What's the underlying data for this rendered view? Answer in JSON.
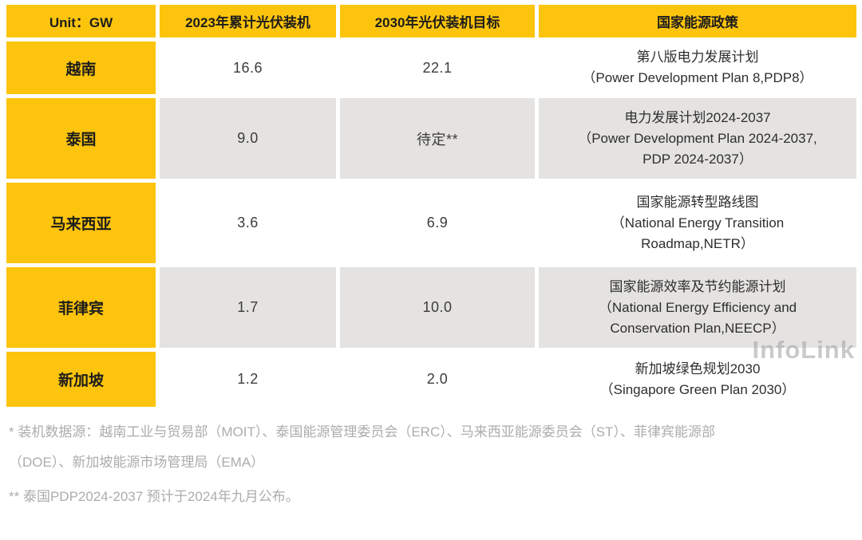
{
  "colors": {
    "accent_yellow": "#FCC40D",
    "cell_gray": "#E4E3E2",
    "cell_white": "#FFFFFF",
    "footnote_gray": "#ACACAB",
    "watermark_gray": "#9E9E9E"
  },
  "table": {
    "headers": [
      "Unit：GW",
      "2023年累计光伏装机",
      "2030年光伏装机目标",
      "国家能源政策"
    ],
    "rows": [
      {
        "country": "越南",
        "installed_2023": "16.6",
        "target_2030": "22.1",
        "policy_lines": [
          "第八版电力发展计划",
          "（Power Development Plan 8,PDP8）"
        ]
      },
      {
        "country": "泰国",
        "installed_2023": "9.0",
        "target_2030": "待定**",
        "policy_lines": [
          "电力发展计划2024-2037",
          "（Power Development Plan 2024-2037,",
          "PDP 2024-2037）"
        ]
      },
      {
        "country": "马来西亚",
        "installed_2023": "3.6",
        "target_2030": "6.9",
        "policy_lines": [
          "国家能源转型路线图",
          "（National Energy Transition",
          "Roadmap,NETR）"
        ]
      },
      {
        "country": "菲律宾",
        "installed_2023": "1.7",
        "target_2030": "10.0",
        "policy_lines": [
          "国家能源效率及节约能源计划",
          "（National Energy Efficiency and",
          "Conservation Plan,NEECP）"
        ]
      },
      {
        "country": "新加坡",
        "installed_2023": "1.2",
        "target_2030": "2.0",
        "policy_lines": [
          "新加坡绿色规划2030",
          "（Singapore Green Plan 2030）"
        ]
      }
    ]
  },
  "footnotes": [
    {
      "lines": [
        "* 装机数据源：越南工业与贸易部（MOIT）、泰国能源管理委员会（ERC）、马来西亚能源委员会（ST）、菲律宾能源部",
        "（DOE）、新加坡能源市场管理局（EMA）"
      ]
    },
    {
      "lines": [
        "** 泰国PDP2024-2037 预计于2024年九月公布。"
      ]
    }
  ],
  "watermark": "InfoLink",
  "chart_data": {
    "type": "table",
    "title": "东南亚各国光伏装机与国家能源政策",
    "unit": "GW",
    "columns": [
      "Unit：GW",
      "2023年累计光伏装机",
      "2030年光伏装机目标",
      "国家能源政策"
    ],
    "rows": [
      [
        "越南",
        16.6,
        22.1,
        "第八版电力发展计划（Power Development Plan 8,PDP8）"
      ],
      [
        "泰国",
        9.0,
        "待定**",
        "电力发展计划2024-2037（Power Development Plan 2024-2037,PDP 2024-2037）"
      ],
      [
        "马来西亚",
        3.6,
        6.9,
        "国家能源转型路线图（National Energy Transition Roadmap,NETR）"
      ],
      [
        "菲律宾",
        1.7,
        10.0,
        "国家能源效率及节约能源计划（National Energy Efficiency and Conservation Plan,NEECP）"
      ],
      [
        "新加坡",
        1.2,
        2.0,
        "新加坡绿色规划2030（Singapore Green Plan 2030）"
      ]
    ],
    "footnotes": [
      "* 装机数据源：越南工业与贸易部（MOIT）、泰国能源管理委员会（ERC）、马来西亚能源委员会（ST）、菲律宾能源部（DOE）、新加坡能源市场管理局（EMA）",
      "** 泰国PDP2024-2037 预计于2024年九月公布。"
    ]
  }
}
